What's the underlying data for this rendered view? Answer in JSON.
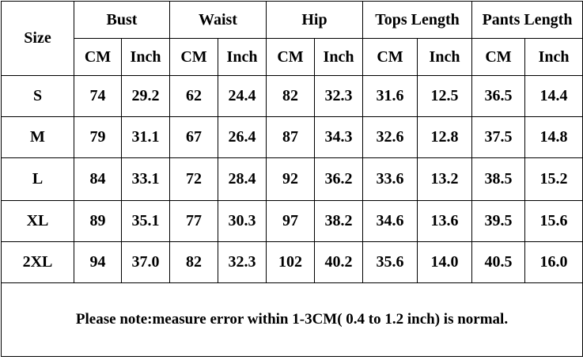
{
  "table": {
    "header": [
      "Size",
      "Bust",
      "Waist",
      "Hip",
      "Tops Length",
      "Pants Length"
    ],
    "subheader": [
      "CM",
      "Inch",
      "CM",
      "Inch",
      "CM",
      "Inch",
      "CM",
      "Inch",
      "CM",
      "Inch"
    ],
    "rows": [
      [
        "S",
        "74",
        "29.2",
        "62",
        "24.4",
        "82",
        "32.3",
        "31.6",
        "12.5",
        "36.5",
        "14.4"
      ],
      [
        "M",
        "79",
        "31.1",
        "67",
        "26.4",
        "87",
        "34.3",
        "32.6",
        "12.8",
        "37.5",
        "14.8"
      ],
      [
        "L",
        "84",
        "33.1",
        "72",
        "28.4",
        "92",
        "36.2",
        "33.6",
        "13.2",
        "38.5",
        "15.2"
      ],
      [
        "XL",
        "89",
        "35.1",
        "77",
        "30.3",
        "97",
        "38.2",
        "34.6",
        "13.6",
        "39.5",
        "15.6"
      ],
      [
        "2XL",
        "94",
        "37.0",
        "82",
        "32.3",
        "102",
        "40.2",
        "35.6",
        "14.0",
        "40.5",
        "16.0"
      ]
    ],
    "note": "Please note:measure error within 1-3CM( 0.4 to 1.2 inch) is normal."
  }
}
